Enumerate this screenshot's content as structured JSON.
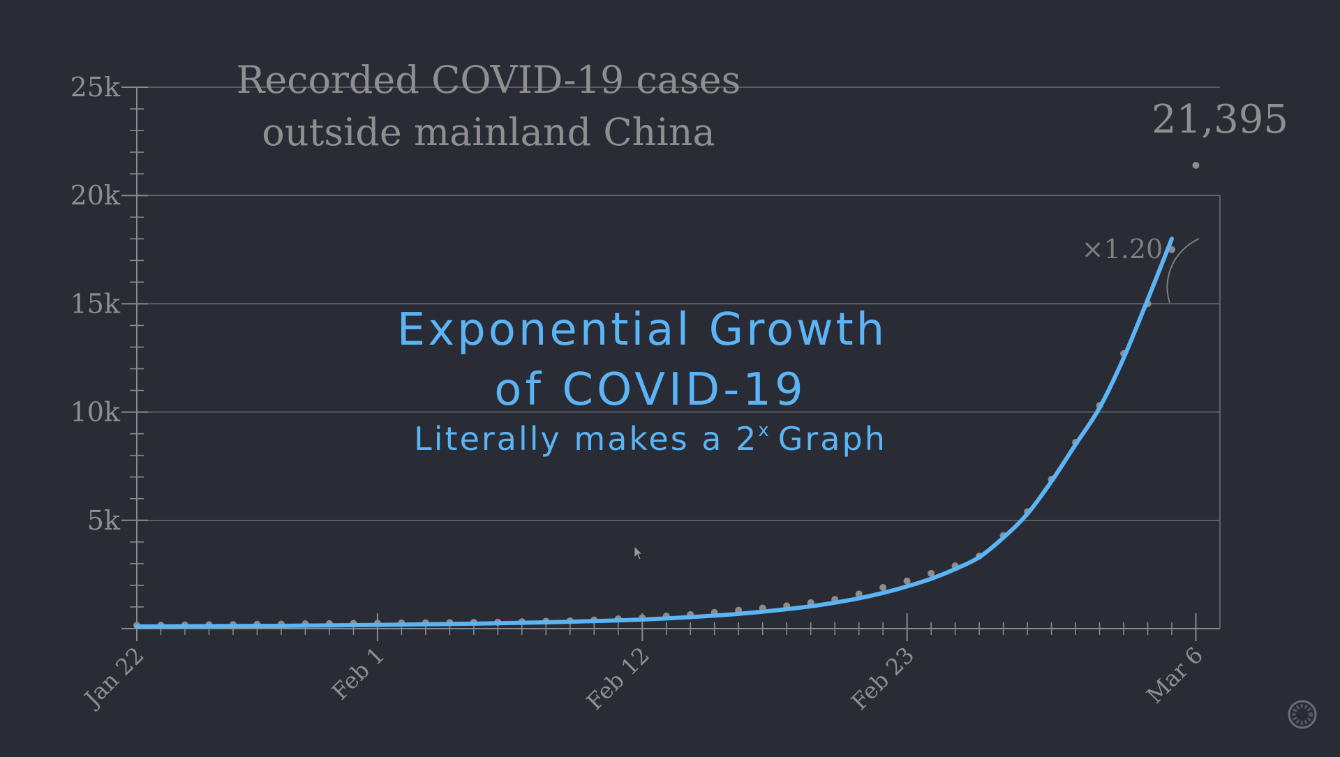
{
  "chart_data": {
    "type": "line",
    "title_lines": [
      "Recorded COVID-19 cases",
      "outside mainland China"
    ],
    "overlay": {
      "line1": "Exponential Growth",
      "line2": "of COVID-19",
      "line3_base": "Literally makes a 2",
      "line3_sup": "x",
      "line3_tail": "Graph"
    },
    "final_label": "21,395",
    "growth_label": "×1.20",
    "xlabel": "",
    "ylabel": "",
    "y_ticks": [
      {
        "value": 5000,
        "label": "5k"
      },
      {
        "value": 10000,
        "label": "10k"
      },
      {
        "value": 15000,
        "label": "15k"
      },
      {
        "value": 20000,
        "label": "20k"
      },
      {
        "value": 25000,
        "label": "25k"
      }
    ],
    "ylim": [
      0,
      25000
    ],
    "x_ticks": [
      {
        "day": 0,
        "label": "Jan 22"
      },
      {
        "day": 10,
        "label": "Feb 1"
      },
      {
        "day": 21,
        "label": "Feb 12"
      },
      {
        "day": 32,
        "label": "Feb 23"
      },
      {
        "day": 44,
        "label": "Mar 6"
      }
    ],
    "xlim_days": [
      0,
      45
    ],
    "grid": true,
    "series": [
      {
        "kind": "points",
        "values": [
          150,
          160,
          170,
          180,
          190,
          200,
          210,
          220,
          230,
          240,
          250,
          260,
          270,
          280,
          290,
          300,
          320,
          340,
          360,
          400,
          450,
          500,
          580,
          650,
          750,
          850,
          950,
          1050,
          1200,
          1350,
          1600,
          1900,
          2200,
          2550,
          2900,
          3350,
          4300,
          5400,
          6900,
          8600,
          10300,
          12700,
          15000,
          17500,
          21395
        ],
        "color": "#8c8c8c"
      },
      {
        "kind": "curve",
        "values": [
          100,
          105,
          110,
          115,
          120,
          125,
          130,
          140,
          150,
          160,
          170,
          185,
          200,
          215,
          230,
          250,
          270,
          290,
          320,
          350,
          380,
          420,
          470,
          530,
          600,
          680,
          780,
          900,
          1030,
          1200,
          1400,
          1650,
          1950,
          2300,
          2750,
          3300,
          4200,
          5300,
          6800,
          8500,
          10200,
          12500,
          15200,
          18000
        ],
        "color": "#5bb4f5"
      }
    ],
    "colors": {
      "background": "#2a2c35",
      "axis": "#8a8a8a",
      "grid": "#6b6d75",
      "text": "#8f8f8f",
      "accent": "#5bb4f5"
    }
  },
  "icons": {
    "cursor": "cursor-icon",
    "corner": "loading-ring-icon"
  }
}
